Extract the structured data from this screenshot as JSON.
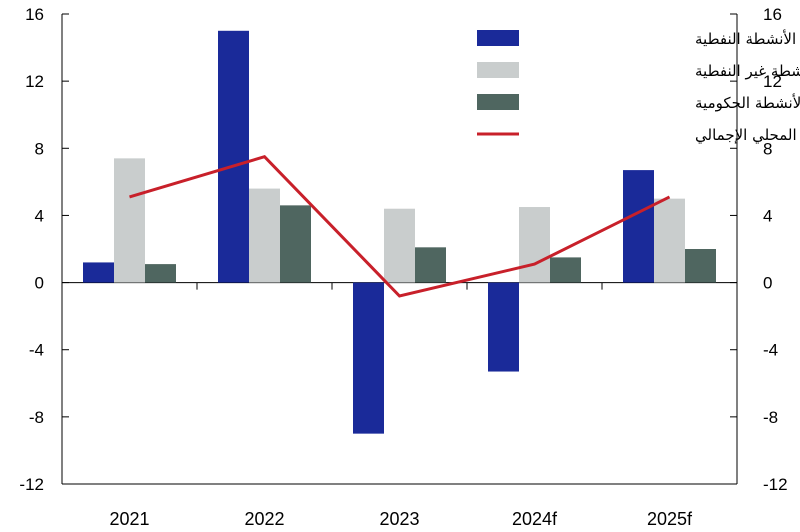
{
  "chart_data": {
    "type": "bar",
    "categories": [
      "2021",
      "2022",
      "2023",
      "2024f",
      "2025f"
    ],
    "series": [
      {
        "name": "الأنشطة النفطية",
        "type": "bar",
        "color": "#1a2a99",
        "values": [
          1.2,
          15.0,
          -9.0,
          -5.3,
          6.7
        ]
      },
      {
        "name": "الأنشطة غير النفطية",
        "type": "bar",
        "color": "#c9cdcd",
        "values": [
          7.4,
          5.6,
          4.4,
          4.5,
          5.0
        ]
      },
      {
        "name": "الأنشطة الحكومية",
        "type": "bar",
        "color": "#4f6660",
        "values": [
          1.1,
          4.6,
          2.1,
          1.5,
          2.0
        ]
      },
      {
        "name": "الناتج المحلي الإجمالي",
        "type": "line",
        "color": "#c8202a",
        "values": [
          5.1,
          7.5,
          -0.8,
          1.1,
          5.1
        ]
      }
    ],
    "ylim": [
      -12,
      16
    ],
    "yticks": [
      "16",
      "12",
      "8",
      "4",
      "0",
      "-4",
      "-8",
      "-12"
    ],
    "ytick_values": [
      16,
      12,
      8,
      4,
      0,
      -4,
      -8,
      -12
    ],
    "secondary_y_axis": true,
    "grid": false,
    "legend_position": "top-right",
    "title": "",
    "xlabel": "",
    "ylabel": ""
  }
}
